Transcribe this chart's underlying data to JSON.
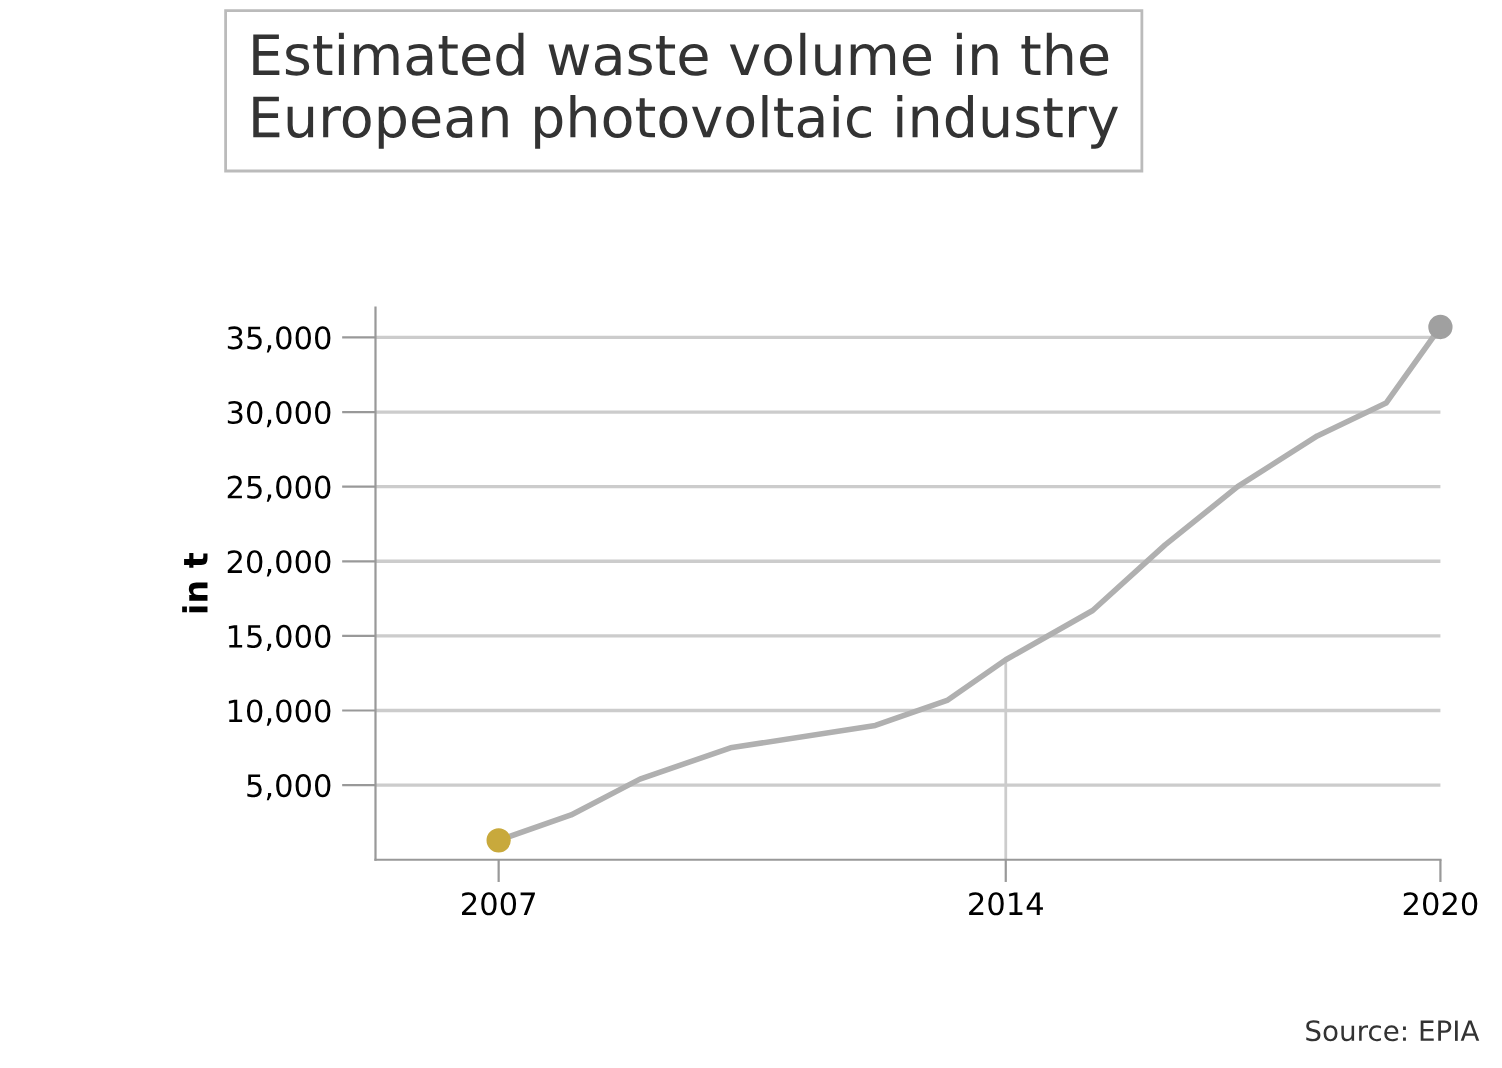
{
  "chart_data": {
    "type": "line",
    "title": "Estimated waste volume in the\nEuropean photovoltaic industry",
    "ylabel": "in t",
    "series": [
      {
        "color": "#b0b0b0",
        "x": [
          2007,
          2008.0,
          2008.95,
          2010.2,
          2012.2,
          2013.2,
          2014,
          2015.2,
          2016.2,
          2017.2,
          2018.3,
          2019.25,
          2020
        ],
        "values": [
          1300,
          3000,
          5400,
          7500,
          9000,
          10700,
          13400,
          16700,
          21100,
          25000,
          28400,
          30600,
          35700
        ]
      },
      {
        "type": "scatter",
        "marker": "circle",
        "color": "#c8a93c",
        "x": [
          2007
        ],
        "values": [
          1300
        ]
      },
      {
        "type": "scatter",
        "marker": "circle",
        "color": "#a0a0a0",
        "x": [
          2020
        ],
        "values": [
          35700
        ]
      }
    ],
    "xlim": [
      2005.3,
      2020
    ],
    "xticks": [
      2007,
      2014,
      2020
    ],
    "ylim": [
      0,
      37000
    ],
    "yticks": [
      {
        "value": 5000,
        "label": "5,000"
      },
      {
        "value": 10000,
        "label": "10,000"
      },
      {
        "value": 15000,
        "label": "15,000"
      },
      {
        "value": 20000,
        "label": "20,000"
      },
      {
        "value": 25000,
        "label": "25,000"
      },
      {
        "value": 30000,
        "label": "30,000"
      },
      {
        "value": 35000,
        "label": "35,000"
      }
    ],
    "ref_lines": [
      {
        "axis": "x",
        "value": 2014,
        "label": null,
        "color": "#cccccc"
      }
    ],
    "grid": "y",
    "legend": false,
    "annotations": [
      "Source: EPIA"
    ]
  }
}
